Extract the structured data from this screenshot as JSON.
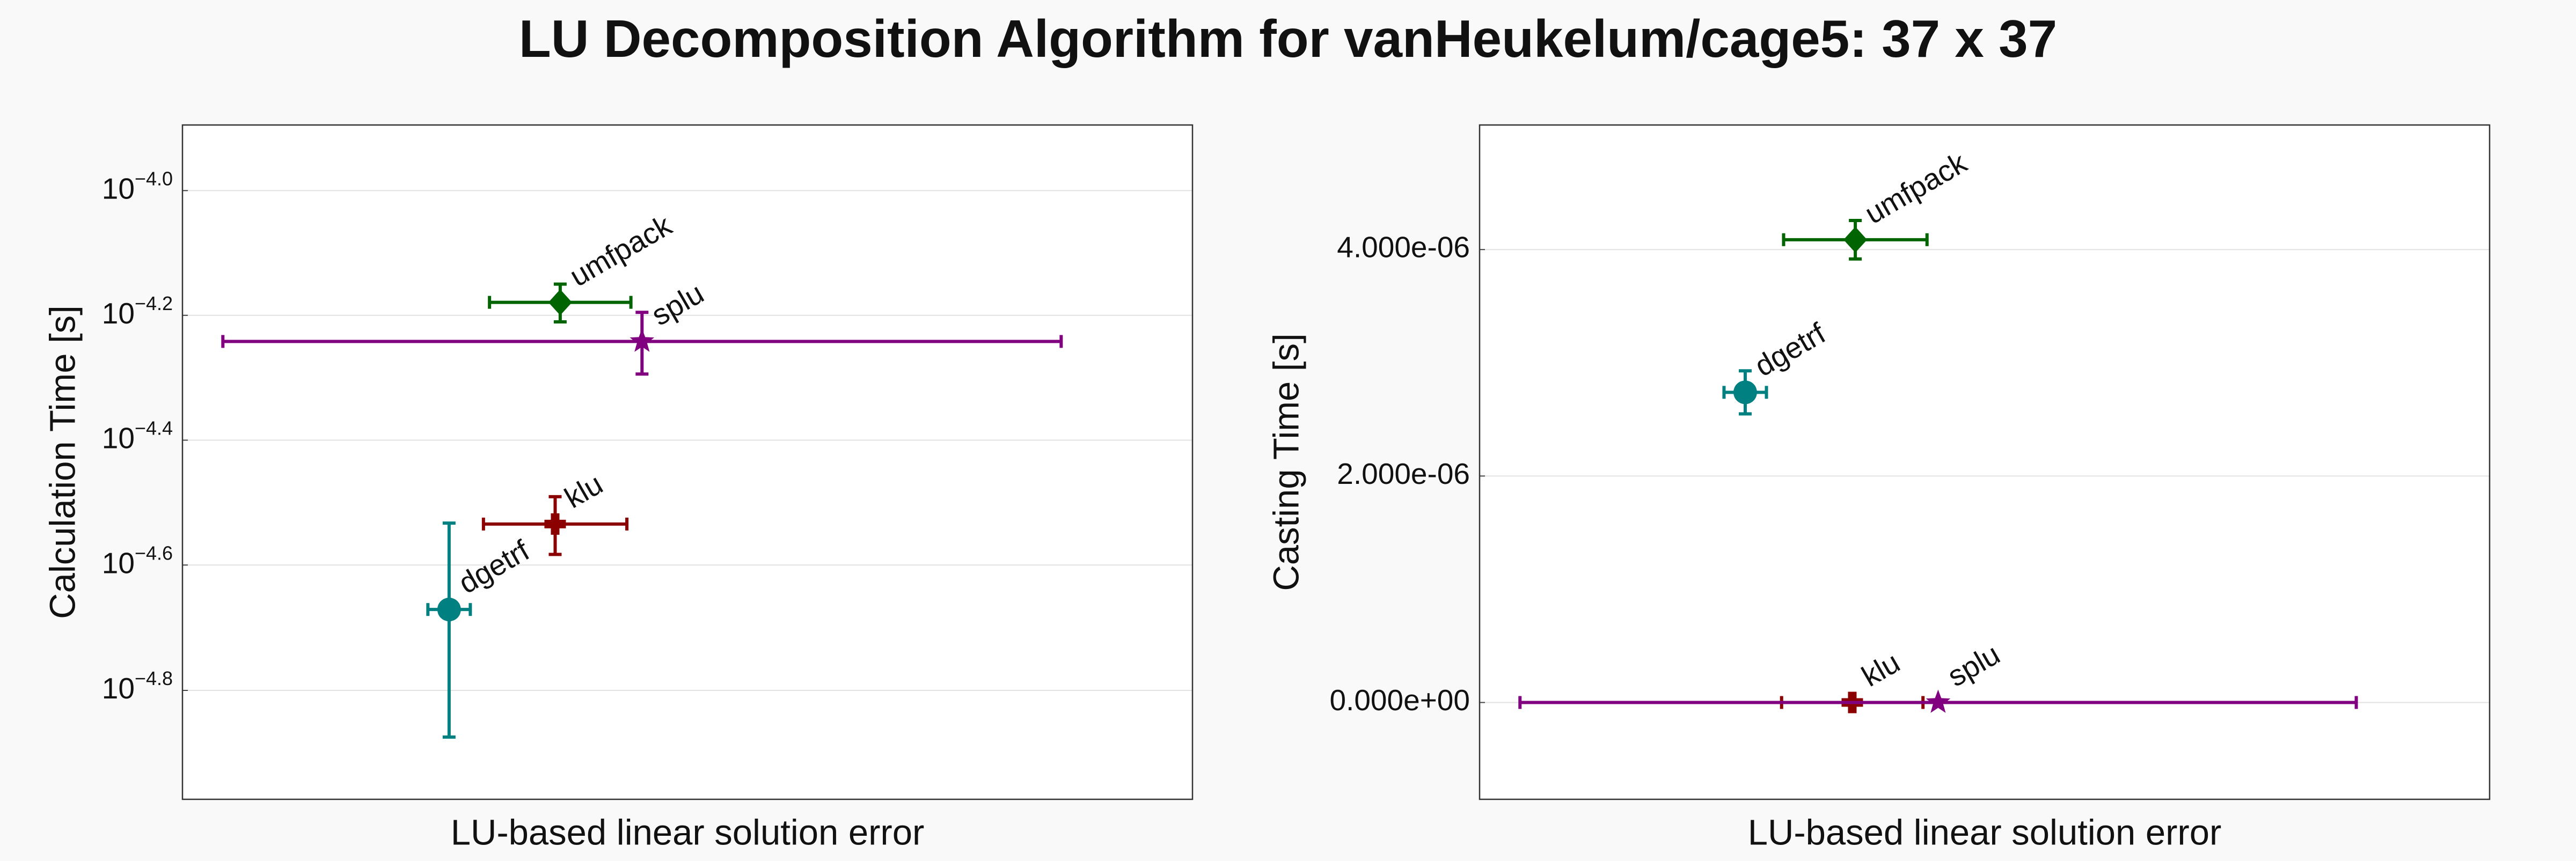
{
  "title": "LU Decomposition Algorithm for vanHeukelum/cage5: 37 x 37",
  "chart_data": [
    {
      "type": "scatter",
      "xlabel": "LU-based linear solution error",
      "ylabel": "Calculation Time [s]",
      "log_y": true,
      "grid": true,
      "xlim": [
        0,
        1
      ],
      "ylim": [
        1.057e-05,
        0.0001274
      ],
      "yticks": [
        {
          "value": 0.0001,
          "label": "10−4.0"
        },
        {
          "value": 6.31e-05,
          "label": "10−4.2"
        },
        {
          "value": 3.98e-05,
          "label": "10−4.4"
        },
        {
          "value": 2.51e-05,
          "label": "10−4.6"
        },
        {
          "value": 1.58e-05,
          "label": "10−4.8"
        }
      ],
      "series": [
        {
          "name": "umfpack",
          "color": "#006400",
          "marker": "diamond",
          "x": [
            0.374
          ],
          "xerr": [
            0.07
          ],
          "values": [
            6.62e-05
          ],
          "yerr": [
            4.6e-06
          ]
        },
        {
          "name": "splu",
          "color": "#800080",
          "marker": "star",
          "x": [
            0.455
          ],
          "xerr": [
            0.415
          ],
          "values": [
            5.73e-05
          ],
          "yerr": [
            6.5e-06
          ]
        },
        {
          "name": "klu",
          "color": "#8b0000",
          "marker": "plus",
          "x": [
            0.369
          ],
          "xerr": [
            0.071
          ],
          "values": [
            2.92e-05
          ],
          "yerr": [
            3.1e-06
          ]
        },
        {
          "name": "dgetrf",
          "color": "#008080",
          "marker": "circle",
          "x": [
            0.264
          ],
          "xerr": [
            0.021
          ],
          "values": [
            2.13e-05
          ],
          "yerr": [
            8e-06
          ]
        }
      ]
    },
    {
      "type": "scatter",
      "xlabel": "LU-based linear solution error",
      "ylabel": "Casting Time [s]",
      "log_y": false,
      "grid": true,
      "xlim": [
        0,
        1
      ],
      "ylim": [
        -8.55e-07,
        5.1e-06
      ],
      "yticks": [
        {
          "value": 0,
          "label": "0.000e+00"
        },
        {
          "value": 2e-06,
          "label": "2.000e-06"
        },
        {
          "value": 4e-06,
          "label": "4.000e-06"
        }
      ],
      "series": [
        {
          "name": "umfpack",
          "color": "#006400",
          "marker": "diamond",
          "x": [
            0.372
          ],
          "xerr": [
            0.071
          ],
          "values": [
            4.087e-06
          ],
          "yerr": [
            1.7e-07
          ]
        },
        {
          "name": "dgetrf",
          "color": "#008080",
          "marker": "circle",
          "x": [
            0.263
          ],
          "xerr": [
            0.021
          ],
          "values": [
            2.739e-06
          ],
          "yerr": [
            1.9e-07
          ]
        },
        {
          "name": "klu",
          "color": "#8b0000",
          "marker": "plus",
          "x": [
            0.369
          ],
          "xerr": [
            0.07
          ],
          "values": [
            0
          ],
          "yerr": [
            0
          ]
        },
        {
          "name": "splu",
          "color": "#800080",
          "marker": "star",
          "x": [
            0.454
          ],
          "xerr": [
            0.414
          ],
          "values": [
            0
          ],
          "yerr": [
            0
          ]
        }
      ]
    }
  ]
}
